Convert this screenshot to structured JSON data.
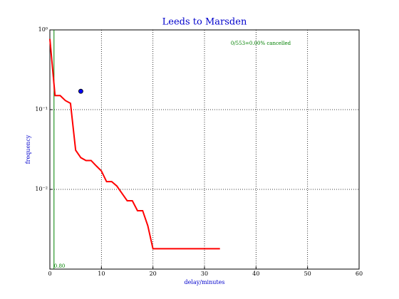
{
  "chart_data": {
    "type": "line",
    "title": "Leeds to Marsden",
    "xlabel": "delay/minutes",
    "ylabel": "frequency",
    "annotation": "0/553=0.00% cancelled",
    "xlim": [
      0,
      60
    ],
    "xticks": [
      0,
      10,
      20,
      30,
      40,
      50,
      60
    ],
    "ylim": [
      0.001,
      1
    ],
    "yscale": "log",
    "yticks": [
      {
        "value": 1,
        "label": "10⁰"
      },
      {
        "value": 0.1,
        "label": "10⁻¹"
      },
      {
        "value": 0.01,
        "label": "10⁻²"
      }
    ],
    "grid": true,
    "series": [
      {
        "color": "#ff0000",
        "x": [
          0,
          1,
          2,
          3,
          4,
          5,
          6,
          7,
          8,
          9,
          10,
          11,
          12,
          13,
          14,
          15,
          16,
          17,
          18,
          19,
          20,
          33
        ],
        "values": [
          0.77,
          0.15,
          0.15,
          0.13,
          0.12,
          0.031,
          0.025,
          0.023,
          0.023,
          0.0197,
          0.017,
          0.0125,
          0.0125,
          0.011,
          0.0089,
          0.0072,
          0.0072,
          0.0054,
          0.0054,
          0.0035,
          0.0018,
          0.0018
        ]
      }
    ],
    "point": {
      "x": 6,
      "y": 0.17,
      "color": "#0000ff"
    },
    "vline": {
      "x": 0.8,
      "label": "0.80",
      "color": "#008000"
    }
  }
}
